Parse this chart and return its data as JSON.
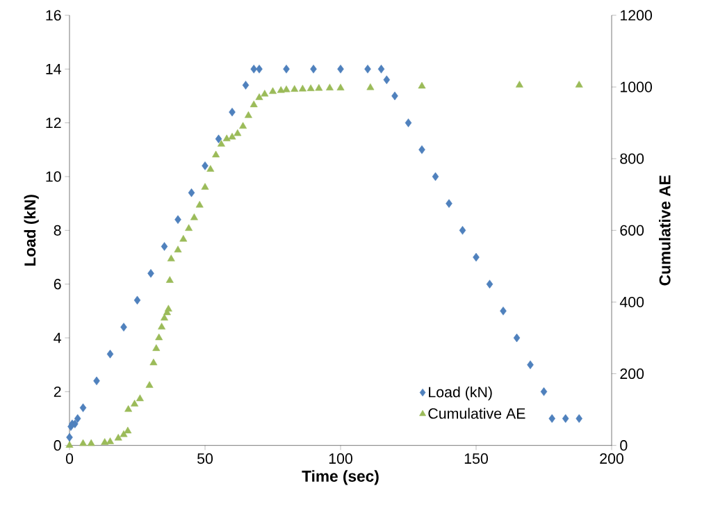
{
  "chart_data": {
    "type": "scatter",
    "xlabel": "Time (sec)",
    "ylabel": "Load (kN)",
    "y2label": "Cumulative AE",
    "xlim": [
      0,
      200
    ],
    "xticks": [
      0,
      50,
      100,
      150,
      200
    ],
    "ylim": [
      0,
      16
    ],
    "yticks": [
      0,
      2,
      4,
      6,
      8,
      10,
      12,
      14,
      16
    ],
    "y2lim": [
      0,
      1200
    ],
    "y2ticks": [
      0,
      200,
      400,
      600,
      800,
      1000,
      1200
    ],
    "grid": false,
    "legend": "bottom right",
    "series": [
      {
        "name": "Load (kN)",
        "color": "#4f81bd",
        "marker": "diamond",
        "x": [
          0,
          0.5,
          1,
          2,
          3,
          5,
          10,
          15,
          20,
          25,
          30,
          35,
          40,
          45,
          50,
          55,
          60,
          65,
          68,
          70,
          80,
          90,
          100,
          110,
          115,
          117,
          120,
          125,
          130,
          135,
          140,
          145,
          150,
          155,
          160,
          165,
          170,
          175,
          178,
          183,
          188
        ],
        "values": [
          0.3,
          0.7,
          0.8,
          0.8,
          1.0,
          1.4,
          2.4,
          3.4,
          4.4,
          5.4,
          6.4,
          7.4,
          8.4,
          9.4,
          10.4,
          11.4,
          12.4,
          13.4,
          14.0,
          14.0,
          14.0,
          14.0,
          14.0,
          14.0,
          14.0,
          13.6,
          13.0,
          12.0,
          11.0,
          10.0,
          9.0,
          8.0,
          7.0,
          6.0,
          5.0,
          4.0,
          3.0,
          2.0,
          1.0,
          1.0,
          1.0
        ]
      },
      {
        "name": "Cumulative AE",
        "color": "#9bbb59",
        "marker": "triangle",
        "axis": "y2",
        "x": [
          0,
          5,
          8,
          13,
          15,
          18,
          20,
          21.5,
          21.7,
          24,
          26,
          29.5,
          31,
          32,
          33,
          34,
          35,
          36,
          36.5,
          37,
          37.5,
          40,
          42,
          44,
          46,
          48,
          50,
          52,
          54,
          56,
          58,
          60,
          62,
          64,
          66,
          68,
          70,
          72,
          75,
          78,
          80,
          83,
          86,
          89,
          92,
          96,
          100,
          111,
          130,
          166,
          188
        ],
        "values": [
          0,
          5,
          5,
          8,
          10,
          20,
          30,
          40,
          100,
          115,
          130,
          167,
          230,
          270,
          300,
          330,
          355,
          370,
          380,
          460,
          520,
          545,
          575,
          605,
          635,
          670,
          720,
          770,
          810,
          840,
          855,
          860,
          870,
          890,
          920,
          950,
          970,
          980,
          987,
          990,
          992,
          993,
          994,
          995,
          996,
          997,
          997,
          998,
          1002,
          1005,
          1005
        ]
      }
    ]
  }
}
